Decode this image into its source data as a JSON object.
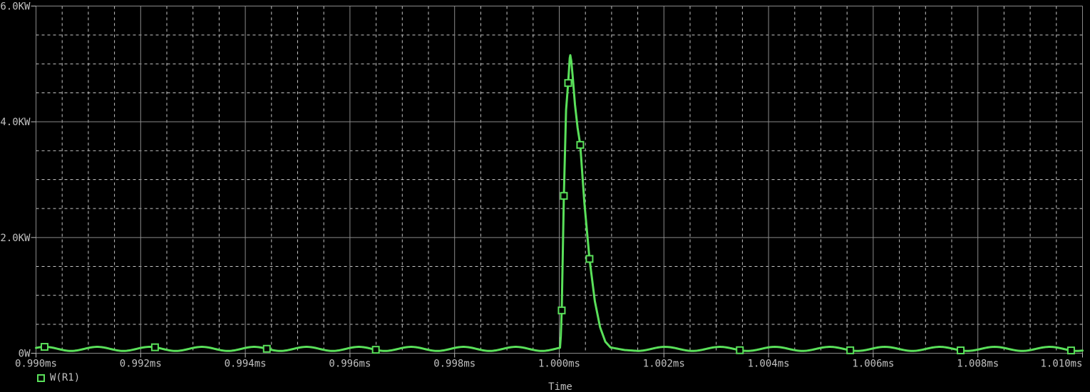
{
  "window": {
    "background_color": "#000000",
    "text_color": "#c0c0c0"
  },
  "chart_data": {
    "type": "line",
    "title": "",
    "xlabel": "Time",
    "ylabel": "",
    "x_unit": "ms",
    "y_unit": "W",
    "xlim_ms": [
      0.99,
      1.01
    ],
    "ylim_kw": [
      0,
      6
    ],
    "x_major_step_ms": 0.002,
    "x_minor_step_ms": 0.0005,
    "y_major_step_kw": 2.0,
    "y_minor_step_kw": 0.5,
    "x_tick_labels": [
      "0.990ms",
      "0.992ms",
      "0.994ms",
      "0.996ms",
      "0.998ms",
      "1.000ms",
      "1.002ms",
      "1.004ms",
      "1.006ms",
      "1.008ms",
      "1.010ms"
    ],
    "y_tick_labels": [
      "0W",
      "2.0KW",
      "4.0KW",
      "6.0KW"
    ],
    "grid": {
      "major_color": "#8a8a8a",
      "minor_color": "#c6c6c6",
      "minor_dash": "4 4",
      "major_style": "solid",
      "minor_style": "dashed"
    },
    "legend": {
      "position": "bottom-left",
      "entries": [
        {
          "marker": "open-square",
          "label": "W(R1)",
          "color": "#5ae05a"
        }
      ]
    },
    "series": [
      {
        "name": "W(R1)",
        "color": "#5ae05a",
        "peak_time_ms": 1.00021,
        "peak_value_kw": 5.15,
        "baseline_ripple_pre_peak": {
          "mean_kw": 0.075,
          "amplitude_kw": 0.035,
          "period_ms": 0.001,
          "crest_at_ms": 0.99017,
          "until_ms": 1.000014
        },
        "baseline_ripple_post_peak": {
          "mean_kw": 0.075,
          "amplitude_kw": 0.035,
          "period_ms": 0.00105,
          "crest_at_ms": 1.002022,
          "from_ms": 1.0015
        },
        "peak_points_ms_kw": [
          [
            1.000014,
            0.095
          ],
          [
            1.00003,
            0.3
          ],
          [
            1.000047,
            0.74
          ],
          [
            1.000065,
            1.6
          ],
          [
            1.000088,
            2.72
          ],
          [
            1.00013,
            4.2
          ],
          [
            1.00017,
            4.67
          ],
          [
            1.0002,
            5.1
          ],
          [
            1.000211,
            5.15
          ],
          [
            1.00023,
            5.05
          ],
          [
            1.00026,
            4.75
          ],
          [
            1.0003,
            4.3
          ],
          [
            1.00035,
            3.9
          ],
          [
            1.000401,
            3.6
          ],
          [
            1.00048,
            2.6
          ],
          [
            1.000578,
            1.63
          ],
          [
            1.00068,
            0.9
          ],
          [
            1.00078,
            0.45
          ],
          [
            1.00088,
            0.2
          ],
          [
            1.00098,
            0.1
          ],
          [
            1.00125,
            0.055
          ],
          [
            1.0015,
            0.04
          ]
        ],
        "marker_times_ms": [
          0.990163,
          0.992274,
          0.994411,
          0.996494,
          1.000047,
          1.000088,
          1.00017,
          1.000401,
          1.000578,
          1.003451,
          1.005561,
          1.007671,
          1.009781
        ]
      }
    ]
  }
}
